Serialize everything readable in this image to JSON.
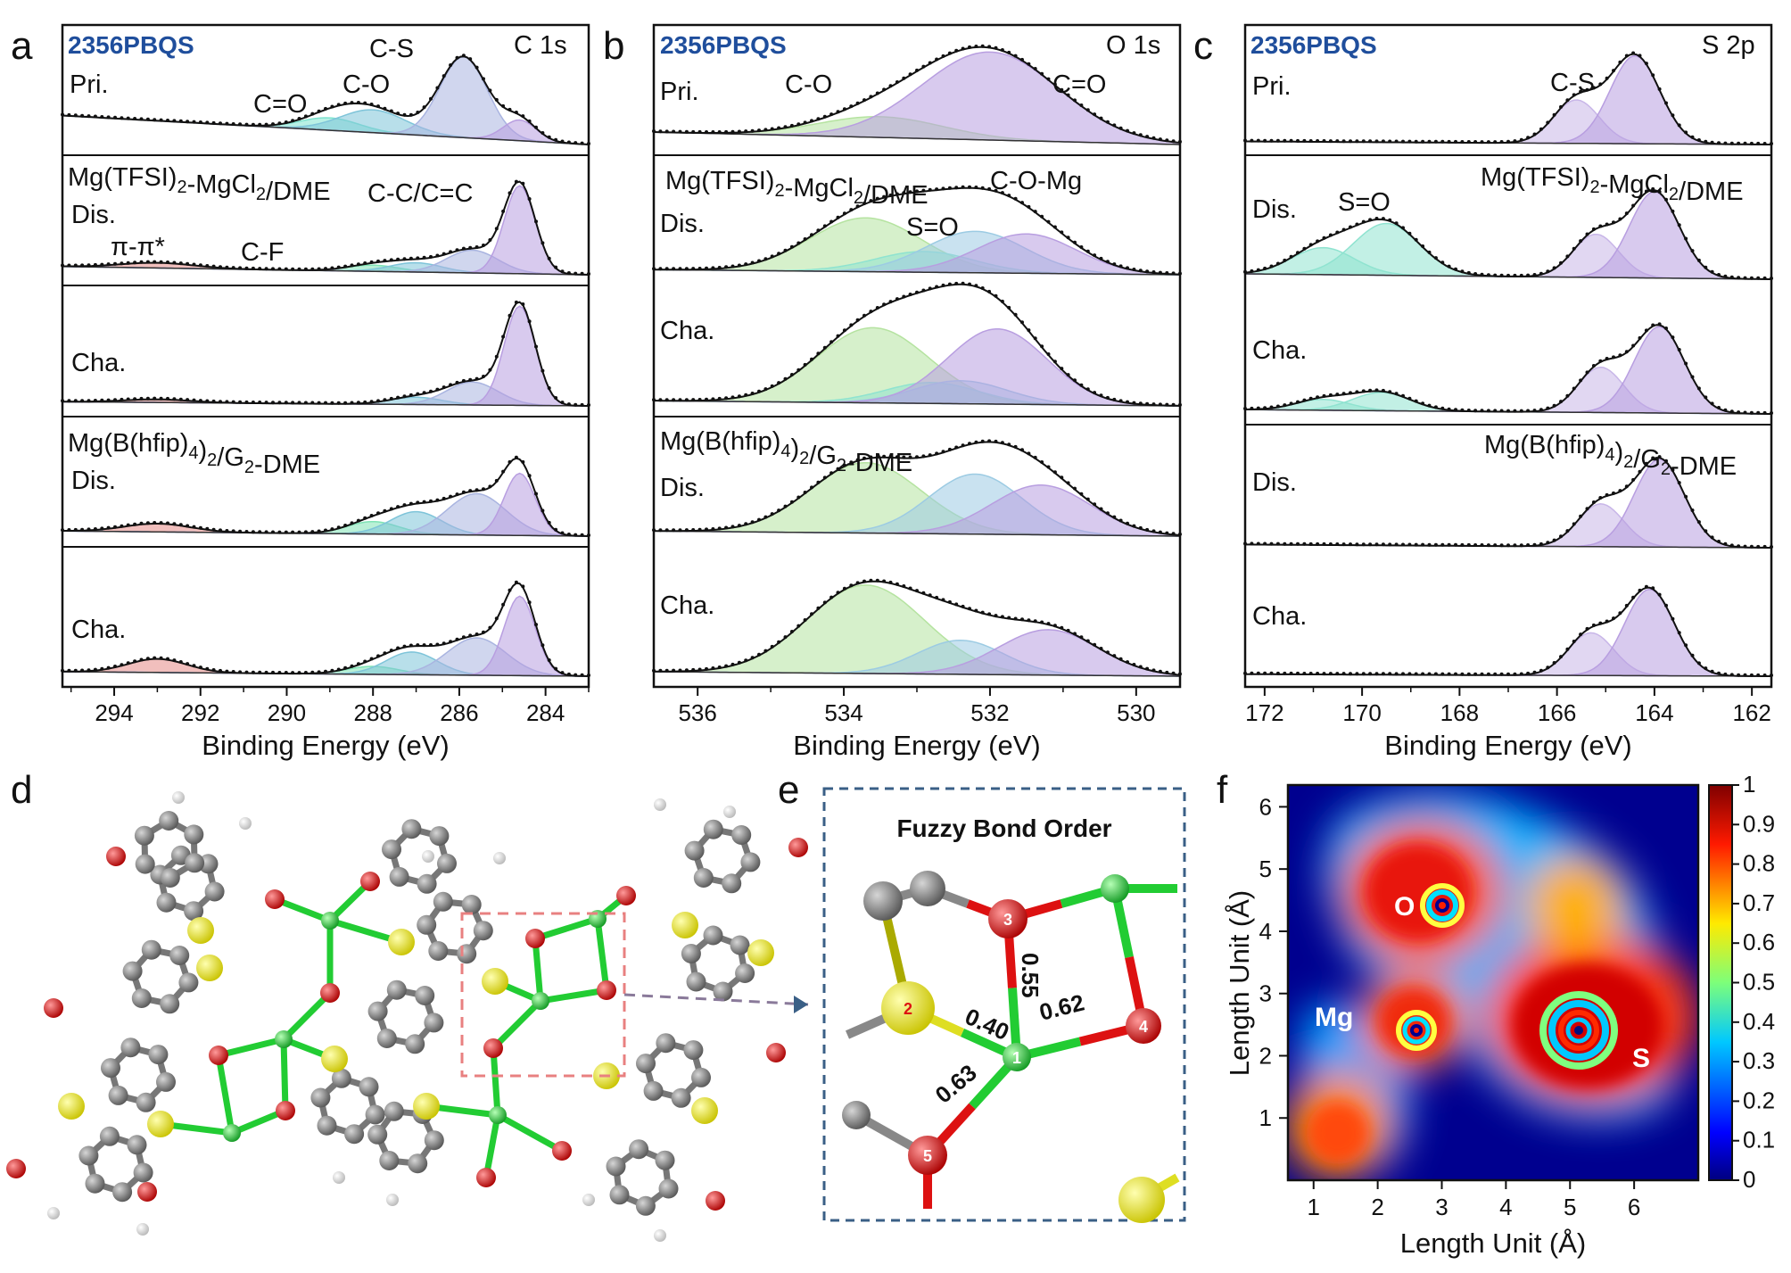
{
  "figure_labels": {
    "a": "a",
    "b": "b",
    "c": "c",
    "d": "d",
    "e": "e",
    "f": "f"
  },
  "xps_common": {
    "sample": "2356PBQS",
    "xlabel": "Binding Energy (eV)",
    "electrolyte1": "Mg(TFSI)2-MgCl2/DME",
    "electrolyte2": "Mg(B(hfip)4)2/G2-DME",
    "states": [
      "Pri.",
      "Dis.",
      "Cha.",
      "Dis.",
      "Cha."
    ]
  },
  "chart_data": [
    {
      "type": "line",
      "id": "a",
      "title": "C 1s",
      "xlabel": "Binding Energy (eV)",
      "xlim": [
        295.2,
        283
      ],
      "xticks": [
        294,
        292,
        290,
        288,
        286,
        284
      ],
      "peak_labels": [
        {
          "text": "C-S",
          "color": "#6a77b5"
        },
        {
          "text": "C-O",
          "color": "#3e9cb4"
        },
        {
          "text": "C=O",
          "color": "#2fc7b0"
        },
        {
          "text": "C-C/C=C",
          "color": "#7a4fa8"
        },
        {
          "text": "π-π*",
          "color": "#e5807a"
        },
        {
          "text": "C-F",
          "color": "#59c48c"
        }
      ],
      "series": [
        {
          "state": "Pri.",
          "components": [
            {
              "label": "C=O",
              "center": 289.0,
              "fwhm": 1.6,
              "amplitude": 0.12,
              "color": "#7fe3cf"
            },
            {
              "label": "C-O",
              "center": 288.0,
              "fwhm": 1.8,
              "amplitude": 0.22,
              "color": "#7ec4d9"
            },
            {
              "label": "C-S",
              "center": 285.9,
              "fwhm": 1.3,
              "amplitude": 0.78,
              "color": "#a9b4e0"
            },
            {
              "label": "C-C/C=C",
              "center": 284.6,
              "fwhm": 0.9,
              "amplitude": 0.2,
              "color": "#b89ee0"
            }
          ]
        },
        {
          "state": "Dis.",
          "components": [
            {
              "label": "π-π*",
              "center": 293.0,
              "fwhm": 2.0,
              "amplitude": 0.05,
              "color": "#e58a86"
            },
            {
              "label": "C-F",
              "center": 288.0,
              "fwhm": 1.4,
              "amplitude": 0.06,
              "color": "#7fe3b5"
            },
            {
              "label": "C-O",
              "center": 287.0,
              "fwhm": 1.4,
              "amplitude": 0.09,
              "color": "#7ec4d9"
            },
            {
              "label": "C-S",
              "center": 285.7,
              "fwhm": 1.4,
              "amplitude": 0.22,
              "color": "#a9b4e0"
            },
            {
              "label": "C-C/C=C",
              "center": 284.6,
              "fwhm": 0.85,
              "amplitude": 0.85,
              "color": "#b89ee0"
            }
          ]
        },
        {
          "state": "Cha.",
          "components": [
            {
              "label": "π-π*",
              "center": 293.0,
              "fwhm": 1.8,
              "amplitude": 0.03,
              "color": "#e58a86"
            },
            {
              "label": "C-O",
              "center": 287.0,
              "fwhm": 1.4,
              "amplitude": 0.07,
              "color": "#7ec4d9"
            },
            {
              "label": "C-S",
              "center": 285.7,
              "fwhm": 1.4,
              "amplitude": 0.22,
              "color": "#a9b4e0"
            },
            {
              "label": "C-C/C=C",
              "center": 284.6,
              "fwhm": 0.85,
              "amplitude": 0.95,
              "color": "#b89ee0"
            }
          ]
        },
        {
          "state": "Dis.",
          "components": [
            {
              "label": "π-π*",
              "center": 293.0,
              "fwhm": 1.8,
              "amplitude": 0.08,
              "color": "#e58a86"
            },
            {
              "label": "C-F",
              "center": 288.0,
              "fwhm": 1.4,
              "amplitude": 0.12,
              "color": "#7fe3b5"
            },
            {
              "label": "C-O",
              "center": 287.0,
              "fwhm": 1.4,
              "amplitude": 0.22,
              "color": "#7ec4d9"
            },
            {
              "label": "C-S",
              "center": 285.6,
              "fwhm": 1.6,
              "amplitude": 0.4,
              "color": "#a9b4e0"
            },
            {
              "label": "C-C/C=C",
              "center": 284.6,
              "fwhm": 0.85,
              "amplitude": 0.6,
              "color": "#b89ee0"
            }
          ]
        },
        {
          "state": "Cha.",
          "components": [
            {
              "label": "π-π*",
              "center": 293.0,
              "fwhm": 1.6,
              "amplitude": 0.12,
              "color": "#e58a86"
            },
            {
              "label": "C-F",
              "center": 288.0,
              "fwhm": 1.4,
              "amplitude": 0.07,
              "color": "#7fe3b5"
            },
            {
              "label": "C-O",
              "center": 287.1,
              "fwhm": 1.4,
              "amplitude": 0.2,
              "color": "#7ec4d9"
            },
            {
              "label": "C-S",
              "center": 285.6,
              "fwhm": 1.6,
              "amplitude": 0.33,
              "color": "#a9b4e0"
            },
            {
              "label": "C-C/C=C",
              "center": 284.6,
              "fwhm": 0.85,
              "amplitude": 0.7,
              "color": "#b89ee0"
            }
          ]
        }
      ]
    },
    {
      "type": "line",
      "id": "b",
      "title": "O 1s",
      "xlabel": "Binding Energy (eV)",
      "xlim": [
        536.6,
        529.4
      ],
      "xticks": [
        536,
        534,
        532,
        530
      ],
      "peak_labels": [
        {
          "text": "C-O",
          "color": "#7fcf6a"
        },
        {
          "text": "C=O",
          "color": "#7a4fa8"
        },
        {
          "text": "C-O-Mg",
          "color": "#3e9cb4"
        },
        {
          "text": "S=O",
          "color": "#2fc7b0"
        }
      ],
      "series": [
        {
          "state": "Pri.",
          "components": [
            {
              "label": "C-O",
              "center": 533.5,
              "fwhm": 2.0,
              "amplitude": 0.2,
              "color": "#b5e3a0"
            },
            {
              "label": "C=O",
              "center": 532.0,
              "fwhm": 2.2,
              "amplitude": 0.85,
              "color": "#b89ee0"
            }
          ]
        },
        {
          "state": "Dis.",
          "components": [
            {
              "label": "C-O",
              "center": 533.7,
              "fwhm": 1.8,
              "amplitude": 0.52,
              "color": "#b5e3a0"
            },
            {
              "label": "S=O",
              "center": 532.9,
              "fwhm": 1.6,
              "amplitude": 0.2,
              "color": "#8fe3d0"
            },
            {
              "label": "C-O-Mg",
              "center": 532.2,
              "fwhm": 1.6,
              "amplitude": 0.4,
              "color": "#9ccbe3"
            },
            {
              "label": "C=O",
              "center": 531.5,
              "fwhm": 1.6,
              "amplitude": 0.38,
              "color": "#b89ee0"
            }
          ]
        },
        {
          "state": "Cha.",
          "components": [
            {
              "label": "C-O",
              "center": 533.6,
              "fwhm": 1.8,
              "amplitude": 0.72,
              "color": "#b5e3a0"
            },
            {
              "label": "S=O",
              "center": 532.8,
              "fwhm": 1.5,
              "amplitude": 0.2,
              "color": "#8fe3d0"
            },
            {
              "label": "C-O-Mg",
              "center": 532.4,
              "fwhm": 1.5,
              "amplitude": 0.22,
              "color": "#9ccbe3"
            },
            {
              "label": "C=O",
              "center": 531.9,
              "fwhm": 1.6,
              "amplitude": 0.72,
              "color": "#b89ee0"
            }
          ]
        },
        {
          "state": "Dis.",
          "components": [
            {
              "label": "C-O",
              "center": 533.7,
              "fwhm": 1.8,
              "amplitude": 0.68,
              "color": "#b5e3a0"
            },
            {
              "label": "C-O-Mg",
              "center": 532.2,
              "fwhm": 1.5,
              "amplitude": 0.58,
              "color": "#9ccbe3"
            },
            {
              "label": "C=O",
              "center": 531.3,
              "fwhm": 1.6,
              "amplitude": 0.48,
              "color": "#b89ee0"
            }
          ]
        },
        {
          "state": "Cha.",
          "components": [
            {
              "label": "C-O",
              "center": 533.7,
              "fwhm": 1.9,
              "amplitude": 0.78,
              "color": "#b5e3a0"
            },
            {
              "label": "C-O-Mg",
              "center": 532.4,
              "fwhm": 1.4,
              "amplitude": 0.3,
              "color": "#9ccbe3"
            },
            {
              "label": "C=O",
              "center": 531.2,
              "fwhm": 1.6,
              "amplitude": 0.4,
              "color": "#b89ee0"
            }
          ]
        }
      ]
    },
    {
      "type": "line",
      "id": "c",
      "title": "S 2p",
      "xlabel": "Binding Energy (eV)",
      "xlim": [
        172.4,
        161.6
      ],
      "xticks": [
        172,
        170,
        168,
        166,
        164,
        162
      ],
      "peak_labels": [
        {
          "text": "C-S",
          "color": "#7a4fa8"
        },
        {
          "text": "S=O",
          "color": "#2fc7b0"
        }
      ],
      "series": [
        {
          "state": "Pri.",
          "components": [
            {
              "label": "C-S 2p1/2",
              "center": 165.6,
              "fwhm": 1.1,
              "amplitude": 0.42,
              "color": "#c8b6e8"
            },
            {
              "label": "C-S 2p3/2",
              "center": 164.4,
              "fwhm": 1.2,
              "amplitude": 0.85,
              "color": "#b89ee0"
            }
          ]
        },
        {
          "state": "Dis.",
          "components": [
            {
              "label": "S=O",
              "center": 170.8,
              "fwhm": 1.5,
              "amplitude": 0.25,
              "color": "#8fe3d0"
            },
            {
              "label": "S=O",
              "center": 169.5,
              "fwhm": 1.6,
              "amplitude": 0.48,
              "color": "#8fe3d0"
            },
            {
              "label": "C-S 2p1/2",
              "center": 165.2,
              "fwhm": 1.1,
              "amplitude": 0.4,
              "color": "#c8b6e8"
            },
            {
              "label": "C-S 2p3/2",
              "center": 164.0,
              "fwhm": 1.2,
              "amplitude": 0.8,
              "color": "#b89ee0"
            }
          ]
        },
        {
          "state": "Cha.",
          "components": [
            {
              "label": "S=O",
              "center": 170.8,
              "fwhm": 1.3,
              "amplitude": 0.1,
              "color": "#8fe3d0"
            },
            {
              "label": "S=O",
              "center": 169.6,
              "fwhm": 1.4,
              "amplitude": 0.17,
              "color": "#8fe3d0"
            },
            {
              "label": "C-S 2p1/2",
              "center": 165.1,
              "fwhm": 1.1,
              "amplitude": 0.42,
              "color": "#c8b6e8"
            },
            {
              "label": "C-S 2p3/2",
              "center": 163.9,
              "fwhm": 1.2,
              "amplitude": 0.8,
              "color": "#b89ee0"
            }
          ]
        },
        {
          "state": "Dis.",
          "components": [
            {
              "label": "C-S 2p1/2",
              "center": 165.1,
              "fwhm": 1.1,
              "amplitude": 0.4,
              "color": "#c8b6e8"
            },
            {
              "label": "C-S 2p3/2",
              "center": 163.9,
              "fwhm": 1.2,
              "amplitude": 0.82,
              "color": "#b89ee0"
            }
          ]
        },
        {
          "state": "Cha.",
          "components": [
            {
              "label": "C-S 2p1/2",
              "center": 165.3,
              "fwhm": 1.1,
              "amplitude": 0.42,
              "color": "#c8b6e8"
            },
            {
              "label": "C-S 2p3/2",
              "center": 164.1,
              "fwhm": 1.2,
              "amplitude": 0.85,
              "color": "#b89ee0"
            }
          ]
        }
      ]
    },
    {
      "type": "heatmap",
      "id": "f",
      "title": "",
      "xlabel": "Length Unit (Å)",
      "ylabel": "Length Unit (Å)",
      "xlim": [
        0.6,
        7.0
      ],
      "ylim": [
        0,
        6.35
      ],
      "xticks": [
        1,
        2,
        3,
        4,
        5,
        6
      ],
      "yticks": [
        1,
        2,
        3,
        4,
        5,
        6
      ],
      "colorbar": {
        "min": 0,
        "max": 1,
        "ticks": [
          "0",
          "0.1",
          "0.2",
          "0.3",
          "0.4",
          "0.5",
          "0.6",
          "0.7",
          "0.8",
          "0.9",
          "1"
        ]
      },
      "atoms": [
        {
          "label": "O",
          "x": 2.85,
          "y": 4.45
        },
        {
          "label": "Mg",
          "x": 2.45,
          "y": 2.45
        },
        {
          "label": "S",
          "x": 5.1,
          "y": 2.45
        }
      ]
    }
  ],
  "panel_e": {
    "title": "Fuzzy Bond Order",
    "atoms": [
      "1",
      "2",
      "3",
      "4",
      "5"
    ],
    "bonds": [
      {
        "from": "1",
        "to": "2",
        "value": "0.40"
      },
      {
        "from": "1",
        "to": "3",
        "value": "0.55"
      },
      {
        "from": "1",
        "to": "4",
        "value": "0.62"
      },
      {
        "from": "1",
        "to": "5",
        "value": "0.63"
      }
    ]
  },
  "colors": {
    "mg": "#22cc33",
    "o": "#dd1111",
    "s": "#eeee22",
    "c": "#888888",
    "h": "#f0f0f0",
    "sample": "#1f4e9c",
    "frame": "#3a5f86"
  }
}
